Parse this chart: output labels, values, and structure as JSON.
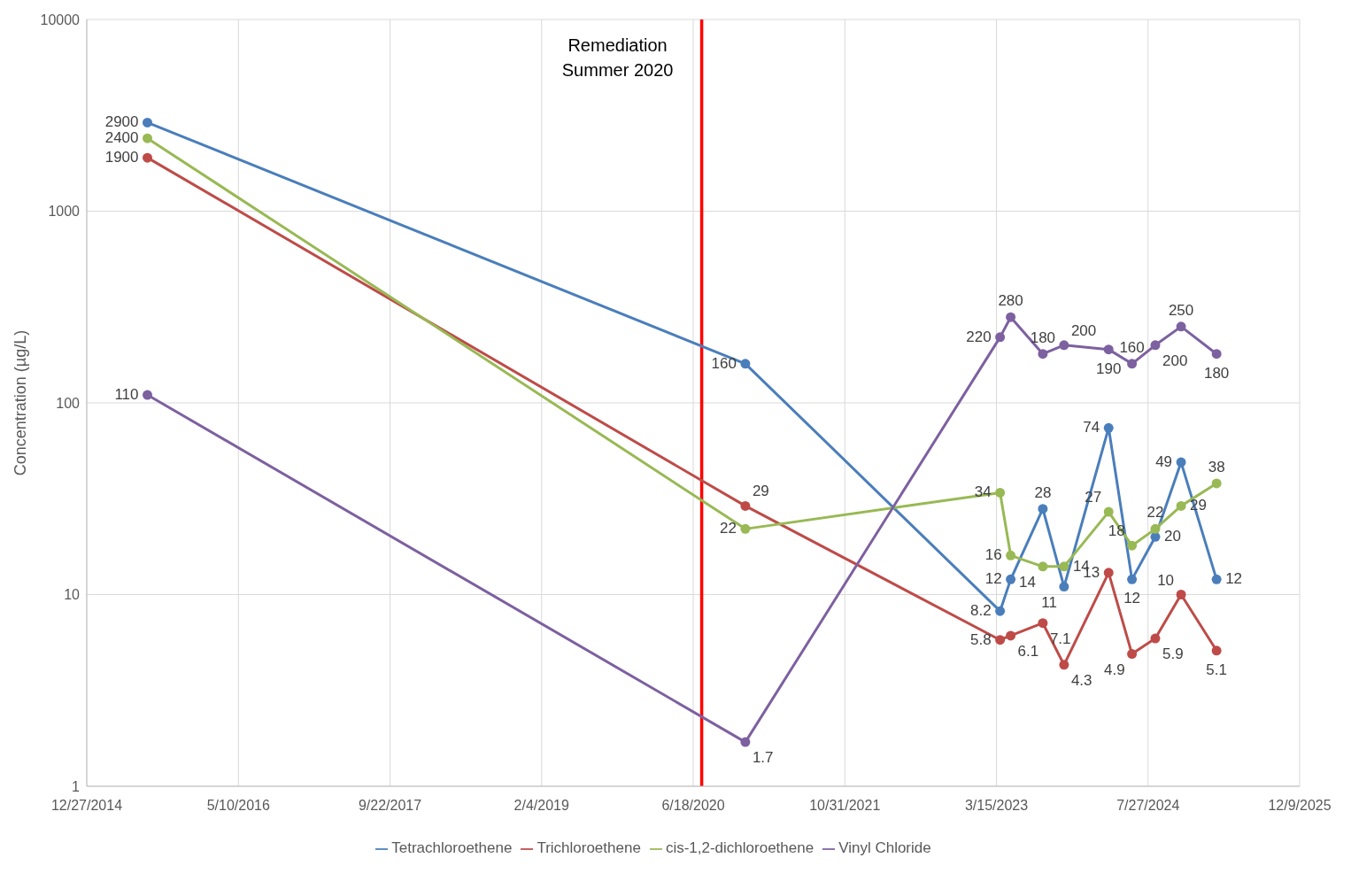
{
  "chart_data": {
    "type": "line",
    "ylabel": "Concentration (µg/L)",
    "log": true,
    "grid": true,
    "legend": "bottom",
    "marker": "circle",
    "line_style": "solid",
    "data_labels": true,
    "x": [
      "2015-07-15",
      "2020-12-07",
      "2023-03-27",
      "2023-05-01",
      "2023-08-15",
      "2023-10-24",
      "2024-03-19",
      "2024-06-04",
      "2024-08-20",
      "2024-11-13",
      "2025-03-10"
    ],
    "xlim": [
      "2014-12-27",
      "2025-12-09"
    ],
    "xticks": [
      {
        "value": "2014-12-27",
        "label": "12/27/2014"
      },
      {
        "value": "2016-05-10",
        "label": "5/10/2016"
      },
      {
        "value": "2017-09-22",
        "label": "9/22/2017"
      },
      {
        "value": "2019-02-04",
        "label": "2/4/2019"
      },
      {
        "value": "2020-06-18",
        "label": "6/18/2020"
      },
      {
        "value": "2021-10-31",
        "label": "10/31/2021"
      },
      {
        "value": "2023-03-15",
        "label": "3/15/2023"
      },
      {
        "value": "2024-07-27",
        "label": "7/27/2024"
      },
      {
        "value": "2025-12-09",
        "label": "12/9/2025"
      }
    ],
    "ylim": [
      1,
      10000
    ],
    "yticks": [
      1,
      10,
      100,
      1000,
      10000
    ],
    "series": [
      {
        "name": "Tetrachloroethene",
        "color": "#4a7ebb",
        "values": [
          2900,
          160,
          8.2,
          12,
          28,
          11,
          74,
          12,
          20,
          49,
          12
        ]
      },
      {
        "name": "Trichloroethene",
        "color": "#be4b48",
        "values": [
          1900,
          29,
          5.8,
          6.1,
          7.1,
          4.3,
          13,
          4.9,
          5.9,
          10,
          5.1
        ]
      },
      {
        "name": "cis-1,2-dichloroethene",
        "color": "#98b954",
        "values": [
          2400,
          22,
          34,
          16,
          14,
          14,
          27,
          18,
          22,
          29,
          38
        ]
      },
      {
        "name": "Vinyl Chloride",
        "color": "#7d60a0",
        "values": [
          110,
          1.7,
          220,
          280,
          180,
          200,
          190,
          160,
          200,
          250,
          180
        ]
      }
    ],
    "ref_lines": [
      {
        "axis": "x",
        "value": "2020-07-16",
        "label": "Remediation Summer 2020",
        "color": "#ff0000",
        "line_style": "solid"
      }
    ]
  }
}
